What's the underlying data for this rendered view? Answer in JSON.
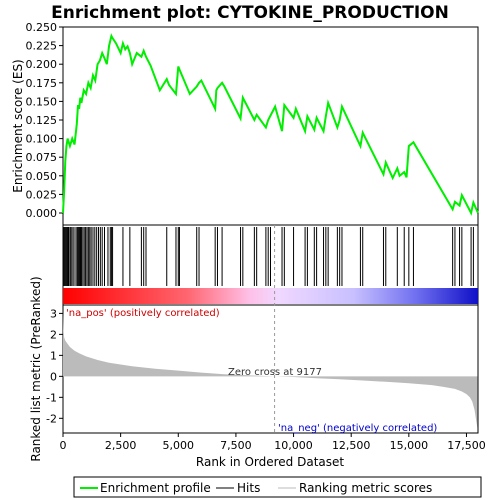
{
  "chart_data": {
    "type": "line",
    "title": "Enrichment plot: CYTOKINE_PRODUCTION",
    "xlabel": "Rank in Ordered Dataset",
    "es_panel": {
      "ylabel": "Enrichment score (ES)",
      "ylim": [
        0,
        0.25
      ],
      "yticks": [
        "0.000",
        "0.025",
        "0.050",
        "0.075",
        "0.100",
        "0.125",
        "0.150",
        "0.175",
        "0.200",
        "0.225",
        "0.250"
      ],
      "ytick_values": [
        0,
        0.025,
        0.05,
        0.075,
        0.1,
        0.125,
        0.15,
        0.175,
        0.2,
        0.225,
        0.25
      ],
      "series_color": "#00ee00",
      "series": [
        {
          "name": "Enrichment profile",
          "x": [
            0,
            50,
            100,
            150,
            200,
            300,
            400,
            500,
            600,
            650,
            700,
            750,
            800,
            900,
            1000,
            1100,
            1200,
            1300,
            1400,
            1500,
            1600,
            1700,
            1800,
            1900,
            2000,
            2100,
            2150,
            2300,
            2500,
            2600,
            2700,
            2800,
            2900,
            3000,
            3200,
            3400,
            3500,
            3600,
            3800,
            4200,
            4500,
            4600,
            4900,
            5000,
            5050,
            5500,
            5800,
            5900,
            6000,
            6600,
            6650,
            6700,
            6900,
            7000,
            7700,
            7800,
            8300,
            8400,
            8800,
            8900,
            9200,
            9500,
            9600,
            10000,
            10100,
            10500,
            10600,
            10900,
            11000,
            11300,
            11400,
            11500,
            11900,
            12000,
            12100,
            12900,
            13000,
            13900,
            14000,
            14300,
            14500,
            14600,
            14800,
            14900,
            15000,
            15200,
            16900,
            17000,
            17200,
            17300,
            17700,
            17800,
            18000
          ]
        }
      ],
      "es_values": [
        0.0,
        0.03,
        0.07,
        0.09,
        0.1,
        0.09,
        0.1,
        0.092,
        0.12,
        0.145,
        0.14,
        0.155,
        0.148,
        0.165,
        0.16,
        0.175,
        0.168,
        0.185,
        0.178,
        0.2,
        0.205,
        0.215,
        0.208,
        0.2,
        0.225,
        0.238,
        0.235,
        0.228,
        0.215,
        0.228,
        0.22,
        0.224,
        0.215,
        0.2,
        0.215,
        0.21,
        0.218,
        0.21,
        0.198,
        0.165,
        0.18,
        0.172,
        0.16,
        0.197,
        0.193,
        0.16,
        0.17,
        0.175,
        0.178,
        0.14,
        0.165,
        0.168,
        0.175,
        0.17,
        0.127,
        0.155,
        0.125,
        0.132,
        0.115,
        0.125,
        0.143,
        0.11,
        0.145,
        0.128,
        0.14,
        0.11,
        0.13,
        0.112,
        0.128,
        0.11,
        0.13,
        0.148,
        0.115,
        0.125,
        0.143,
        0.09,
        0.108,
        0.052,
        0.068,
        0.047,
        0.06,
        0.05,
        0.055,
        0.048,
        0.09,
        0.095,
        0.005,
        0.015,
        0.01,
        0.024,
        0.0,
        0.014,
        0.0
      ]
    },
    "hits_panel": {
      "hit_ranks": [
        20,
        60,
        100,
        140,
        180,
        220,
        260,
        320,
        380,
        440,
        520,
        600,
        640,
        680,
        720,
        760,
        800,
        860,
        920,
        980,
        1040,
        1100,
        1160,
        1220,
        1300,
        1380,
        1460,
        1540,
        1620,
        1700,
        1800,
        1950,
        2050,
        2100,
        2150,
        2600,
        2900,
        3400,
        3500,
        3600,
        4500,
        4900,
        5000,
        5050,
        5800,
        5900,
        6600,
        6700,
        6900,
        7700,
        7800,
        8300,
        8400,
        8800,
        8900,
        9000,
        9500,
        9600,
        10000,
        10500,
        10600,
        10900,
        11000,
        11300,
        11400,
        11500,
        11900,
        12000,
        12100,
        12900,
        13000,
        13900,
        14000,
        14500,
        14800,
        15000,
        15200,
        16900,
        17000,
        17200,
        17300,
        17700,
        17800
      ]
    },
    "metric_panel": {
      "ylabel": "Ranked list metric (PreRanked)",
      "ylim": [
        -2.7,
        3.4
      ],
      "yticks": [
        "-2",
        "-1",
        "0",
        "1",
        "2",
        "3"
      ],
      "ytick_values": [
        -2,
        -1,
        0,
        1,
        2,
        3
      ],
      "curve_x": [
        0,
        20,
        50,
        100,
        200,
        300,
        500,
        700,
        1000,
        1500,
        2000,
        3000,
        4000,
        5000,
        6000,
        7000,
        8000,
        9177,
        10000,
        11000,
        12000,
        13000,
        14000,
        15000,
        16000,
        16500,
        17000,
        17300,
        17500,
        17650,
        17750,
        17850,
        17920,
        17980
      ],
      "curve_y": [
        3.1,
        2.2,
        1.85,
        1.7,
        1.55,
        1.4,
        1.22,
        1.1,
        0.95,
        0.78,
        0.65,
        0.48,
        0.36,
        0.27,
        0.18,
        0.1,
        0.05,
        0.0,
        -0.03,
        -0.09,
        -0.14,
        -0.2,
        -0.26,
        -0.33,
        -0.42,
        -0.5,
        -0.6,
        -0.72,
        -0.85,
        -1.0,
        -1.2,
        -1.6,
        -2.1,
        -2.5
      ],
      "pos_label": "'na_pos' (positively correlated)",
      "neg_label": "'na_neg' (negatively correlated)",
      "zero_cross_label": "Zero cross at 9177",
      "zero_cross": 9177
    },
    "xlim": [
      0,
      18000
    ],
    "xticks": [
      "0",
      "2,500",
      "5,000",
      "7,500",
      "10,000",
      "12,500",
      "15,000",
      "17,500"
    ],
    "xtick_values": [
      0,
      2500,
      5000,
      7500,
      10000,
      12500,
      15000,
      17500
    ],
    "legend": {
      "placement": "bottom",
      "entries": [
        {
          "label": "Enrichment profile",
          "color": "#00ee00"
        },
        {
          "label": "Hits",
          "color": "#000000"
        },
        {
          "label": "Ranking metric scores",
          "color": "#bbbbbb"
        }
      ]
    }
  }
}
